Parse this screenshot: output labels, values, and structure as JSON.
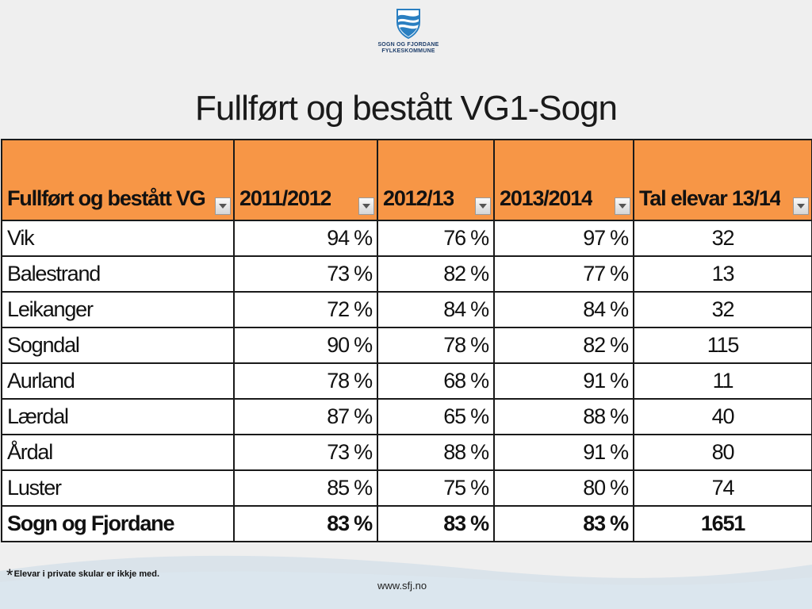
{
  "logo": {
    "line1": "SOGN OG FJORDANE",
    "line2": "FYLKESKOMMUNE"
  },
  "title": "Fullført og bestått VG1-Sogn",
  "table": {
    "headers": [
      "Fullført og bestått VG",
      "2011/2012",
      "2012/13",
      "2013/2014",
      "Tal elevar 13/14"
    ],
    "rows": [
      [
        "Vik",
        "94 %",
        "76 %",
        "97 %",
        "32"
      ],
      [
        "Balestrand",
        "73 %",
        "82 %",
        "77 %",
        "13"
      ],
      [
        "Leikanger",
        "72 %",
        "84 %",
        "84 %",
        "32"
      ],
      [
        "Sogndal",
        "90 %",
        "78 %",
        "82 %",
        "115"
      ],
      [
        "Aurland",
        "78 %",
        "68 %",
        "91 %",
        "11"
      ],
      [
        "Lærdal",
        "87 %",
        "65 %",
        "88 %",
        "40"
      ],
      [
        "Årdal",
        "73 %",
        "88 %",
        "91 %",
        "80"
      ],
      [
        "Luster",
        "85 %",
        "75 %",
        "80 %",
        "74"
      ]
    ],
    "total": [
      "Sogn og Fjordane",
      "83 %",
      "83 %",
      "83 %",
      "1651"
    ]
  },
  "footnote": {
    "star": "*",
    "text": "Elevar i private skular er ikkje med."
  },
  "url": "www.sfj.no",
  "colors": {
    "header_bg": "#f79646",
    "background": "#efefef",
    "logo_blue": "#2a7fc1"
  }
}
